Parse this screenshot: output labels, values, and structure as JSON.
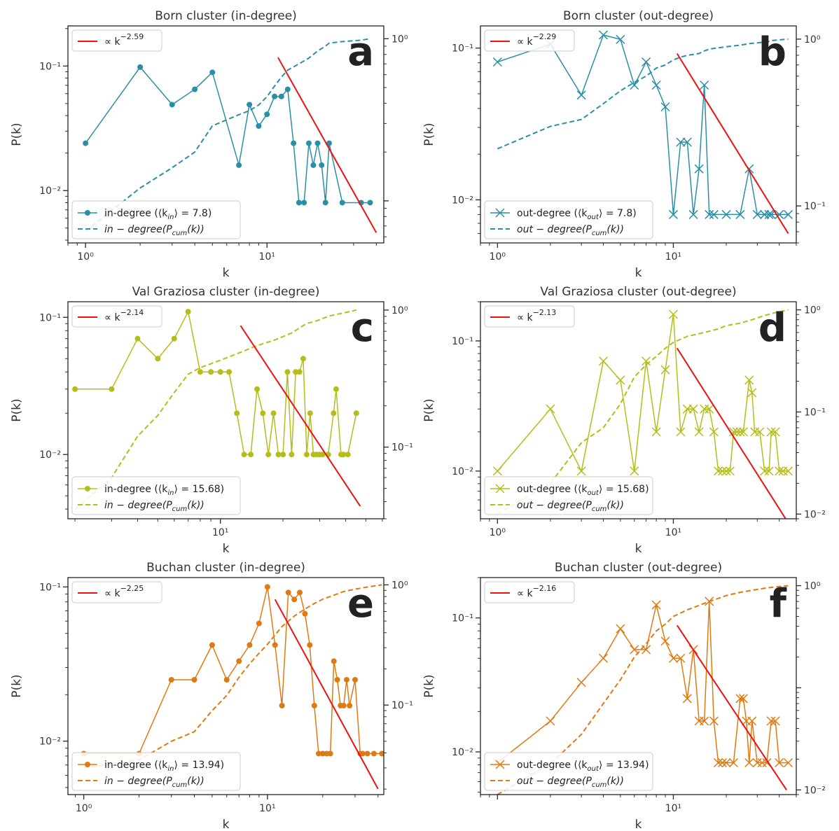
{
  "figure": {
    "panels": [
      {
        "id": "a",
        "letter": "a",
        "title": "Born cluster (in-degree)",
        "color": "#2a8fa6",
        "marker": "dot",
        "top_legend": "∝ k",
        "exponent": "−2.59",
        "legend_series": "in-degree (⟨k",
        "legend_series_sub": "in",
        "legend_series_end": "⟩ = 7.8)",
        "legend_cum": "in − degree(P",
        "legend_cum_sub": "cum",
        "legend_cum_end": "(k))",
        "yticks": [
          "10⁻¹",
          "10⁻²"
        ],
        "y2ticks": [
          "10⁰"
        ],
        "xticks": [
          "10⁰",
          "10¹"
        ]
      },
      {
        "id": "b",
        "letter": "b",
        "title": "Born cluster (out-degree)",
        "color": "#2a8fa6",
        "marker": "x",
        "top_legend": "∝ k",
        "exponent": "−2.29",
        "legend_series": "out-degree (⟨k",
        "legend_series_sub": "out",
        "legend_series_end": "⟩ = 7.8)",
        "legend_cum": "out − degree(P",
        "legend_cum_sub": "cum",
        "legend_cum_end": "(k))",
        "yticks": [
          "10⁻¹",
          "10⁻²"
        ],
        "y2ticks": [
          "10⁰",
          "10⁻¹"
        ],
        "xticks": [
          "10⁰",
          "10¹"
        ]
      },
      {
        "id": "c",
        "letter": "c",
        "title": "Val Graziosa cluster (in-degree)",
        "color": "#b5bd1a",
        "marker": "dot",
        "top_legend": "∝ k",
        "exponent": "−2.14",
        "legend_series": "in-degree (⟨k",
        "legend_series_sub": "in",
        "legend_series_end": "⟩ = 15.68)",
        "legend_cum": "in − degree(P",
        "legend_cum_sub": "cum",
        "legend_cum_end": "(k))",
        "yticks": [
          "10⁻¹",
          "10⁻²"
        ],
        "y2ticks": [
          "10⁰",
          "10⁻¹"
        ],
        "xticks": [
          "10¹"
        ]
      },
      {
        "id": "d",
        "letter": "d",
        "title": "Val Graziosa cluster (out-degree)",
        "color": "#b5bd1a",
        "marker": "x",
        "top_legend": "∝ k",
        "exponent": "−2.13",
        "legend_series": "out-degree (⟨k",
        "legend_series_sub": "out",
        "legend_series_end": "⟩ = 15.68)",
        "legend_cum": "out − degree(P",
        "legend_cum_sub": "cum",
        "legend_cum_end": "(k))",
        "yticks": [
          "10⁻¹",
          "10⁻²"
        ],
        "y2ticks": [
          "10⁰",
          "10⁻¹",
          "10⁻²"
        ],
        "xticks": [
          "10⁰",
          "10¹"
        ]
      },
      {
        "id": "e",
        "letter": "e",
        "title": "Buchan cluster (in-degree)",
        "color": "#de7a12",
        "marker": "dot",
        "top_legend": "∝ k",
        "exponent": "−2.25",
        "legend_series": "in-degree (⟨k",
        "legend_series_sub": "in",
        "legend_series_end": "⟩ = 13.94)",
        "legend_cum": "in − degree(P",
        "legend_cum_sub": "cum",
        "legend_cum_end": "(k))",
        "yticks": [
          "10⁻¹",
          "10⁻²"
        ],
        "y2ticks": [
          "10⁰",
          "10⁻¹"
        ],
        "xticks": [
          "10⁰",
          "10¹"
        ]
      },
      {
        "id": "f",
        "letter": "f",
        "title": "Buchan cluster (out-degree)",
        "color": "#de7a12",
        "marker": "x",
        "top_legend": "∝ k",
        "exponent": "−2.16",
        "legend_series": "out-degree (⟨k",
        "legend_series_sub": "out",
        "legend_series_end": "⟩ = 13.94)",
        "legend_cum": "out − degree(P",
        "legend_cum_sub": "cum",
        "legend_cum_end": "(k))",
        "yticks": [
          "10⁻¹",
          "10⁻²"
        ],
        "y2ticks": [
          "10⁰",
          "10⁻²"
        ],
        "xticks": [
          "10¹"
        ]
      }
    ],
    "xlabel": "k",
    "ylabel": "P(k)",
    "fit_color": "#ee1111"
  },
  "chart_data": [
    {
      "type": "line",
      "log_x": true,
      "log_y": true,
      "secondary_log_y": true,
      "xlim": [
        0.8,
        44
      ],
      "ylim": [
        0.0038,
        0.21
      ],
      "y2lim": [
        0.055,
        1.2
      ],
      "series": [
        {
          "name": "in-degree (⟨k_in⟩ = 7.8)",
          "axis": "left",
          "x": [
            1,
            2,
            3,
            4,
            5,
            7,
            8,
            9,
            10,
            11,
            12,
            13,
            14,
            15,
            16,
            17,
            18,
            19,
            20,
            21,
            22,
            26,
            33,
            37
          ],
          "y": [
            0.024,
            0.098,
            0.049,
            0.065,
            0.089,
            0.016,
            0.049,
            0.033,
            0.041,
            0.057,
            0.057,
            0.065,
            0.024,
            0.008,
            0.008,
            0.024,
            0.016,
            0.024,
            0.016,
            0.008,
            0.024,
            0.008,
            0.008,
            0.008
          ]
        },
        {
          "name": "in − degree(P_cum(k))",
          "axis": "right",
          "x": [
            1,
            2,
            3,
            4,
            5,
            7,
            8,
            9,
            10,
            11,
            12,
            13,
            14,
            15,
            16,
            17,
            18,
            19,
            20,
            21,
            22,
            26,
            33,
            37
          ],
          "y": [
            0.065,
            0.12,
            0.16,
            0.2,
            0.29,
            0.34,
            0.36,
            0.39,
            0.44,
            0.51,
            0.58,
            0.64,
            0.67,
            0.7,
            0.73,
            0.76,
            0.8,
            0.84,
            0.87,
            0.9,
            0.94,
            0.96,
            0.98,
            1.0
          ]
        },
        {
          "name": "∝ k^−2.59",
          "axis": "left",
          "x": [
            11.5,
            40
          ],
          "y": [
            0.117,
            0.0046
          ]
        }
      ]
    },
    {
      "type": "line",
      "log_x": true,
      "log_y": true,
      "secondary_log_y": true,
      "xlim": [
        0.8,
        50
      ],
      "ylim": [
        0.0052,
        0.14
      ],
      "y2lim": [
        0.06,
        1.2
      ],
      "series": [
        {
          "name": "out-degree (⟨k_out⟩ = 7.8)",
          "axis": "left",
          "x": [
            1,
            2,
            3,
            4,
            5,
            6,
            7,
            8,
            9,
            10,
            11,
            12,
            13,
            14,
            15,
            16,
            17,
            20,
            24,
            27,
            30,
            33,
            35,
            36,
            40,
            45
          ],
          "y": [
            0.081,
            0.106,
            0.049,
            0.122,
            0.114,
            0.057,
            0.081,
            0.057,
            0.041,
            0.008,
            0.024,
            0.024,
            0.008,
            0.016,
            0.057,
            0.008,
            0.008,
            0.008,
            0.008,
            0.016,
            0.008,
            0.008,
            0.008,
            0.008,
            0.008,
            0.008
          ]
        },
        {
          "name": "out − degree(P_cum(k))",
          "axis": "right",
          "x": [
            1,
            2,
            3,
            4,
            5,
            6,
            7,
            8,
            9,
            10,
            11,
            12,
            13,
            14,
            15,
            16,
            17,
            20,
            24,
            27,
            30,
            33,
            35,
            36,
            40,
            45
          ],
          "y": [
            0.22,
            0.3,
            0.33,
            0.41,
            0.49,
            0.55,
            0.6,
            0.67,
            0.7,
            0.75,
            0.78,
            0.8,
            0.81,
            0.82,
            0.85,
            0.87,
            0.88,
            0.9,
            0.92,
            0.94,
            0.95,
            0.96,
            0.97,
            0.98,
            0.99,
            1.0
          ]
        },
        {
          "name": "∝ k^−2.29",
          "axis": "left",
          "x": [
            10.5,
            45
          ],
          "y": [
            0.092,
            0.006
          ]
        }
      ]
    },
    {
      "type": "line",
      "log_x": true,
      "log_y": true,
      "secondary_log_y": true,
      "xlim": [
        1.85,
        61
      ],
      "ylim": [
        0.0034,
        0.13
      ],
      "y2lim": [
        0.03,
        1.15
      ],
      "series": [
        {
          "name": "in-degree (⟨k_in⟩ = 15.68)",
          "axis": "left",
          "x": [
            2,
            3,
            4,
            5,
            6,
            7,
            8,
            9,
            10,
            11,
            12,
            13,
            14,
            15,
            16,
            17,
            18,
            19,
            20,
            21,
            22,
            23,
            24,
            25,
            26,
            27,
            28,
            29,
            30,
            31,
            33,
            35,
            36,
            38,
            39,
            41,
            45
          ],
          "y": [
            0.03,
            0.03,
            0.07,
            0.05,
            0.07,
            0.11,
            0.04,
            0.04,
            0.04,
            0.04,
            0.02,
            0.01,
            0.01,
            0.03,
            0.02,
            0.01,
            0.02,
            0.01,
            0.01,
            0.04,
            0.01,
            0.04,
            0.04,
            0.05,
            0.01,
            0.02,
            0.01,
            0.01,
            0.01,
            0.01,
            0.01,
            0.02,
            0.03,
            0.01,
            0.01,
            0.01,
            0.02
          ]
        },
        {
          "name": "in − degree(P_cum(k))",
          "axis": "right",
          "x": [
            2,
            3,
            4,
            5,
            6,
            7,
            8,
            10,
            12,
            15,
            18,
            20,
            22,
            24,
            26,
            28,
            30,
            33,
            36,
            40,
            45
          ],
          "y": [
            0.035,
            0.06,
            0.12,
            0.17,
            0.25,
            0.34,
            0.38,
            0.43,
            0.48,
            0.55,
            0.6,
            0.64,
            0.68,
            0.74,
            0.8,
            0.82,
            0.85,
            0.9,
            0.93,
            0.96,
            1.0
          ]
        },
        {
          "name": "∝ k^−2.14",
          "axis": "left",
          "x": [
            12.5,
            47
          ],
          "y": [
            0.087,
            0.0042
          ]
        }
      ]
    },
    {
      "type": "line",
      "log_x": true,
      "log_y": true,
      "secondary_log_y": true,
      "xlim": [
        0.8,
        50
      ],
      "ylim": [
        0.0043,
        0.2
      ],
      "y2lim": [
        0.009,
        1.2
      ],
      "series": [
        {
          "name": "out-degree (⟨k_out⟩ = 15.68)",
          "axis": "left",
          "x": [
            1,
            2,
            3,
            4,
            5,
            6,
            7,
            8,
            9,
            10,
            11,
            12,
            13,
            14,
            15,
            16,
            17,
            18,
            19,
            20,
            21,
            22,
            23,
            24,
            25,
            27,
            28,
            29,
            31,
            33,
            35,
            36,
            38,
            40,
            42,
            45
          ],
          "y": [
            0.01,
            0.03,
            0.01,
            0.07,
            0.05,
            0.01,
            0.07,
            0.02,
            0.06,
            0.16,
            0.02,
            0.03,
            0.03,
            0.02,
            0.03,
            0.03,
            0.02,
            0.01,
            0.01,
            0.01,
            0.01,
            0.02,
            0.02,
            0.02,
            0.02,
            0.05,
            0.04,
            0.02,
            0.02,
            0.01,
            0.01,
            0.02,
            0.02,
            0.01,
            0.01,
            0.01
          ]
        },
        {
          "name": "out − degree(P_cum(k))",
          "axis": "right",
          "x": [
            1,
            2,
            3,
            4,
            5,
            6,
            7,
            8,
            9,
            10,
            12,
            15,
            18,
            20,
            24,
            28,
            33,
            38,
            45
          ],
          "y": [
            0.01,
            0.02,
            0.05,
            0.07,
            0.12,
            0.22,
            0.29,
            0.35,
            0.42,
            0.48,
            0.55,
            0.6,
            0.65,
            0.7,
            0.74,
            0.8,
            0.88,
            0.94,
            1.0
          ]
        },
        {
          "name": "∝ k^−2.13",
          "axis": "left",
          "x": [
            10.5,
            44
          ],
          "y": [
            0.088,
            0.0042
          ]
        }
      ]
    },
    {
      "type": "line",
      "log_x": true,
      "log_y": true,
      "secondary_log_y": true,
      "xlim": [
        0.82,
        43
      ],
      "ylim": [
        0.0045,
        0.115
      ],
      "y2lim": [
        0.018,
        1.15
      ],
      "series": [
        {
          "name": "in-degree (⟨k_in⟩ = 13.94)",
          "axis": "left",
          "x": [
            1,
            2,
            3,
            4,
            5,
            6,
            7,
            8,
            9,
            10,
            11,
            12,
            13,
            14,
            15,
            16,
            17,
            18,
            19,
            20,
            21,
            22,
            23,
            24,
            25,
            26,
            27,
            28,
            30,
            32,
            33,
            35,
            38,
            42
          ],
          "y": [
            0.0083,
            0.0083,
            0.025,
            0.025,
            0.042,
            0.025,
            0.033,
            0.042,
            0.058,
            0.1,
            0.042,
            0.017,
            0.092,
            0.083,
            0.092,
            0.067,
            0.042,
            0.017,
            0.0083,
            0.0083,
            0.0083,
            0.0083,
            0.033,
            0.025,
            0.017,
            0.017,
            0.025,
            0.017,
            0.025,
            0.0083,
            0.0083,
            0.0083,
            0.0083,
            0.0083
          ]
        },
        {
          "name": "in − degree(P_cum(k))",
          "axis": "right",
          "x": [
            1,
            2,
            3,
            4,
            5,
            6,
            7,
            8,
            9,
            10,
            12,
            14,
            16,
            18,
            20,
            23,
            26,
            30,
            35,
            42
          ],
          "y": [
            0.03,
            0.035,
            0.05,
            0.06,
            0.09,
            0.12,
            0.17,
            0.22,
            0.27,
            0.32,
            0.45,
            0.55,
            0.63,
            0.7,
            0.76,
            0.82,
            0.88,
            0.92,
            0.96,
            1.0
          ]
        },
        {
          "name": "∝ k^−2.25",
          "axis": "left",
          "x": [
            11,
            40
          ],
          "y": [
            0.083,
            0.0049
          ]
        }
      ]
    },
    {
      "type": "line",
      "log_x": true,
      "log_y": true,
      "secondary_log_y": true,
      "xlim": [
        0.8,
        50
      ],
      "ylim": [
        0.0048,
        0.2
      ],
      "y2lim": [
        0.009,
        1.2
      ],
      "series": [
        {
          "name": "out-degree (⟨k_out⟩ = 13.94)",
          "axis": "left",
          "x": [
            1,
            2,
            3,
            4,
            5,
            6,
            7,
            8,
            9,
            10,
            11,
            12,
            13,
            14,
            15,
            16,
            17,
            18,
            19,
            20,
            22,
            24,
            25,
            26,
            27,
            28,
            30,
            32,
            34,
            36,
            38,
            40,
            45
          ],
          "y": [
            0.0083,
            0.017,
            0.033,
            0.05,
            0.083,
            0.058,
            0.058,
            0.125,
            0.067,
            0.05,
            0.05,
            0.025,
            0.058,
            0.017,
            0.017,
            0.133,
            0.017,
            0.0083,
            0.0083,
            0.0083,
            0.0083,
            0.025,
            0.025,
            0.017,
            0.0083,
            0.017,
            0.0083,
            0.0083,
            0.0083,
            0.017,
            0.017,
            0.0083,
            0.0083
          ]
        },
        {
          "name": "out − degree(P_cum(k))",
          "axis": "right",
          "x": [
            1,
            2,
            3,
            4,
            5,
            6,
            7,
            8,
            9,
            10,
            12,
            14,
            16,
            18,
            20,
            24,
            28,
            34,
            40,
            45
          ],
          "y": [
            0.009,
            0.018,
            0.035,
            0.07,
            0.12,
            0.2,
            0.27,
            0.36,
            0.42,
            0.5,
            0.58,
            0.64,
            0.7,
            0.75,
            0.8,
            0.86,
            0.9,
            0.95,
            0.98,
            1.0
          ]
        },
        {
          "name": "∝ k^−2.16",
          "axis": "left",
          "x": [
            10.5,
            44
          ],
          "y": [
            0.088,
            0.0052
          ]
        }
      ]
    }
  ]
}
